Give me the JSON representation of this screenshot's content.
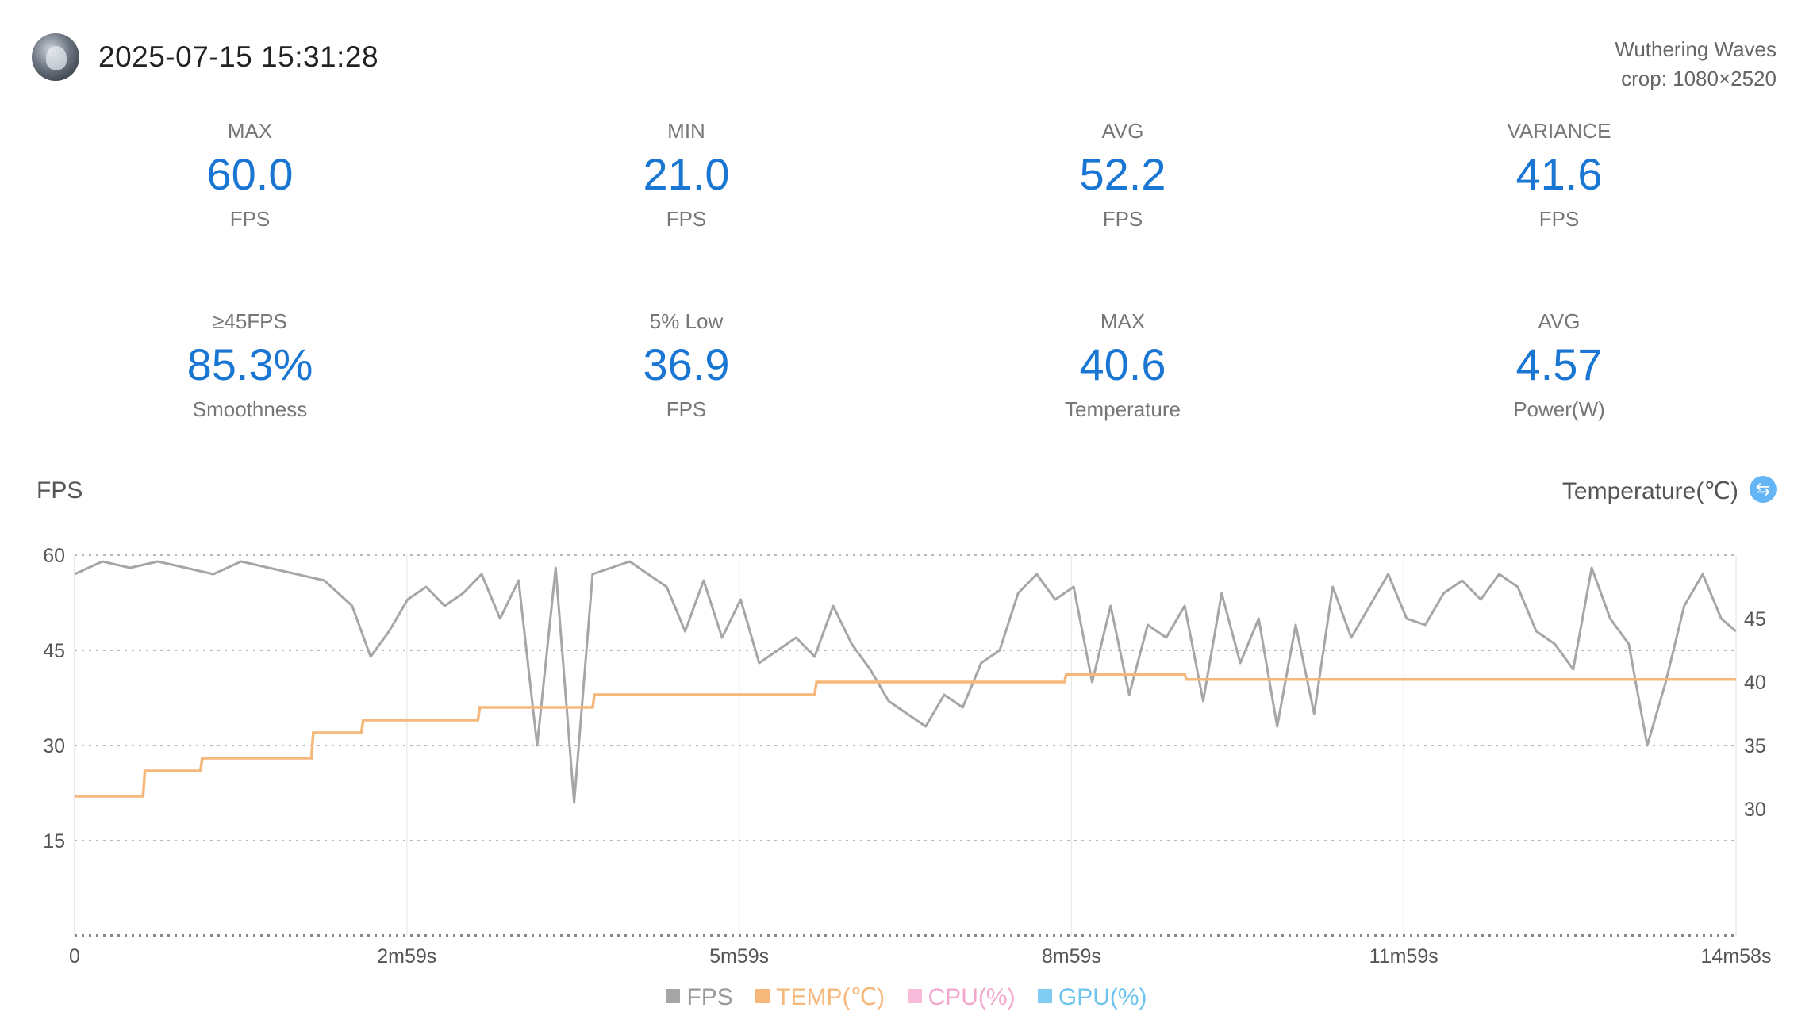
{
  "header": {
    "timestamp": "2025-07-15 15:31:28",
    "game": "Wuthering Waves",
    "crop": "crop: 1080×2520"
  },
  "stats": [
    {
      "label": "MAX",
      "value": "60.0",
      "unit": "FPS"
    },
    {
      "label": "MIN",
      "value": "21.0",
      "unit": "FPS"
    },
    {
      "label": "AVG",
      "value": "52.2",
      "unit": "FPS"
    },
    {
      "label": "VARIANCE",
      "value": "41.6",
      "unit": "FPS"
    },
    {
      "label": "≥45FPS",
      "value": "85.3%",
      "unit": "Smoothness"
    },
    {
      "label": "5% Low",
      "value": "36.9",
      "unit": "FPS"
    },
    {
      "label": "MAX",
      "value": "40.6",
      "unit": "Temperature"
    },
    {
      "label": "AVG",
      "value": "4.57",
      "unit": "Power(W)"
    }
  ],
  "colors": {
    "accent": "#1976d2",
    "fps": "#a6a6a6",
    "temp": "#f5b87a",
    "cpu": "#f8bbd9",
    "gpu": "#81cdf2"
  },
  "chart_data": {
    "type": "line",
    "ylabel_left": "FPS",
    "ylabel_right": "Temperature(℃)",
    "x_ticks": [
      "0",
      "2m59s",
      "5m59s",
      "8m59s",
      "11m59s",
      "14m58s"
    ],
    "x_range_seconds": [
      0,
      898
    ],
    "y_left_ticks": [
      "15",
      "30",
      "45",
      "60"
    ],
    "y_left_range": [
      0,
      60
    ],
    "y_right_ticks": [
      "30",
      "35",
      "40",
      "45"
    ],
    "y_right_range": [
      20,
      50
    ],
    "legend": [
      "FPS",
      "TEMP(℃)",
      "CPU(%)",
      "GPU(%)"
    ],
    "legend_placement": "bottom-center",
    "series": [
      {
        "name": "FPS",
        "x": [
          0,
          15,
          30,
          45,
          60,
          75,
          90,
          105,
          120,
          135,
          150,
          160,
          170,
          180,
          190,
          200,
          210,
          220,
          230,
          240,
          250,
          260,
          270,
          280,
          290,
          300,
          310,
          320,
          330,
          340,
          350,
          360,
          370,
          380,
          390,
          400,
          410,
          420,
          430,
          440,
          450,
          460,
          470,
          480,
          490,
          500,
          510,
          520,
          530,
          540,
          550,
          560,
          570,
          580,
          590,
          600,
          610,
          620,
          630,
          640,
          650,
          660,
          670,
          680,
          690,
          700,
          710,
          720,
          730,
          740,
          750,
          760,
          770,
          780,
          790,
          800,
          810,
          820,
          830,
          840,
          850,
          860,
          870,
          880,
          890,
          898
        ],
        "values": [
          57,
          59,
          58,
          59,
          58,
          57,
          59,
          58,
          57,
          56,
          52,
          44,
          48,
          53,
          55,
          52,
          54,
          57,
          50,
          56,
          30,
          58,
          21,
          57,
          58,
          59,
          57,
          55,
          48,
          56,
          47,
          53,
          43,
          45,
          47,
          44,
          52,
          46,
          42,
          37,
          35,
          33,
          38,
          36,
          43,
          45,
          54,
          57,
          53,
          55,
          40,
          52,
          38,
          49,
          47,
          52,
          37,
          54,
          43,
          50,
          33,
          49,
          35,
          55,
          47,
          52,
          57,
          50,
          49,
          54,
          56,
          53,
          57,
          55,
          48,
          46,
          42,
          58,
          50,
          46,
          30,
          40,
          52,
          57,
          50,
          48
        ]
      },
      {
        "name": "TEMP(℃)",
        "x": [
          0,
          37,
          38,
          68,
          69,
          128,
          129,
          155,
          156,
          218,
          219,
          280,
          281,
          400,
          401,
          535,
          536,
          600,
          601,
          898
        ],
        "values": [
          31.0,
          31.0,
          33.0,
          33.0,
          34.0,
          34.0,
          36.0,
          36.0,
          37.0,
          37.0,
          38.0,
          38.0,
          39.0,
          39.0,
          40.0,
          40.0,
          40.6,
          40.6,
          40.2,
          40.2
        ]
      }
    ]
  }
}
